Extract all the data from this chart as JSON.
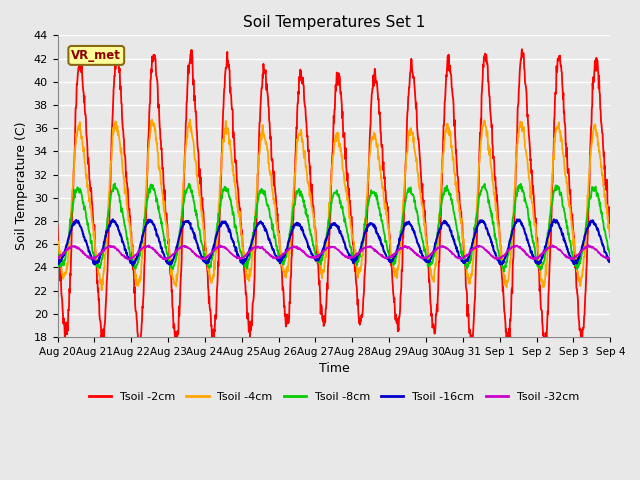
{
  "title": "Soil Temperatures Set 1",
  "xlabel": "Time",
  "ylabel": "Soil Temperature (C)",
  "ylim": [
    18,
    44
  ],
  "yticks": [
    18,
    20,
    22,
    24,
    26,
    28,
    30,
    32,
    34,
    36,
    38,
    40,
    42,
    44
  ],
  "date_labels": [
    "Aug 20",
    "Aug 21",
    "Aug 22",
    "Aug 23",
    "Aug 24",
    "Aug 25",
    "Aug 26",
    "Aug 27",
    "Aug 28",
    "Aug 29",
    "Aug 30",
    "Aug 31",
    "Sep 1",
    "Sep 2",
    "Sep 3",
    "Sep 4"
  ],
  "legend": [
    {
      "label": "Tsoil -2cm",
      "color": "#FF0000"
    },
    {
      "label": "Tsoil -4cm",
      "color": "#FFA500"
    },
    {
      "label": "Tsoil -8cm",
      "color": "#00CC00"
    },
    {
      "label": "Tsoil -16cm",
      "color": "#0000CC"
    },
    {
      "label": "Tsoil -32cm",
      "color": "#CC00CC"
    }
  ],
  "annotation_text": "VR_met",
  "annotation_bg": "#FFFF99",
  "annotation_border": "#8B6914",
  "plot_bg": "#E8E8E8",
  "grid_color": "#FFFFFF",
  "n_days": 15,
  "pts_per_day": 96,
  "depths_mean": [
    30.0,
    29.5,
    27.5,
    26.2,
    25.3
  ],
  "depths_amp1": [
    10.5,
    6.0,
    3.2,
    1.7,
    0.5
  ],
  "depths_amp2": [
    2.5,
    1.2,
    0.3,
    0.1,
    0.0
  ],
  "depths_phase_hrs": [
    14.0,
    14.8,
    16.0,
    17.5,
    19.5
  ],
  "depths_phase2_hrs": [
    14.0,
    14.8,
    16.0,
    17.5,
    19.5
  ]
}
